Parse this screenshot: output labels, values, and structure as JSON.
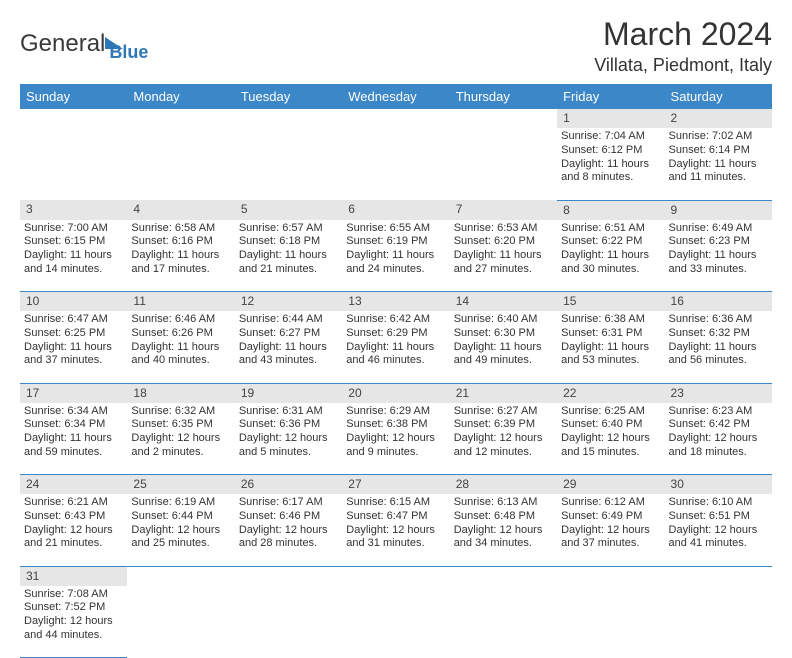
{
  "brand": {
    "name1": "General",
    "name2": "Blue"
  },
  "title": "March 2024",
  "location": "Villata, Piedmont, Italy",
  "colors": {
    "header_bg": "#3b87c8",
    "header_fg": "#ffffff",
    "daynum_bg": "#e6e6e6",
    "border": "#3b87c8"
  },
  "weekdays": [
    "Sunday",
    "Monday",
    "Tuesday",
    "Wednesday",
    "Thursday",
    "Friday",
    "Saturday"
  ],
  "weeks": [
    [
      null,
      null,
      null,
      null,
      null,
      {
        "n": "1",
        "sr": "Sunrise: 7:04 AM",
        "ss": "Sunset: 6:12 PM",
        "d1": "Daylight: 11 hours",
        "d2": "and 8 minutes."
      },
      {
        "n": "2",
        "sr": "Sunrise: 7:02 AM",
        "ss": "Sunset: 6:14 PM",
        "d1": "Daylight: 11 hours",
        "d2": "and 11 minutes."
      }
    ],
    [
      {
        "n": "3",
        "sr": "Sunrise: 7:00 AM",
        "ss": "Sunset: 6:15 PM",
        "d1": "Daylight: 11 hours",
        "d2": "and 14 minutes."
      },
      {
        "n": "4",
        "sr": "Sunrise: 6:58 AM",
        "ss": "Sunset: 6:16 PM",
        "d1": "Daylight: 11 hours",
        "d2": "and 17 minutes."
      },
      {
        "n": "5",
        "sr": "Sunrise: 6:57 AM",
        "ss": "Sunset: 6:18 PM",
        "d1": "Daylight: 11 hours",
        "d2": "and 21 minutes."
      },
      {
        "n": "6",
        "sr": "Sunrise: 6:55 AM",
        "ss": "Sunset: 6:19 PM",
        "d1": "Daylight: 11 hours",
        "d2": "and 24 minutes."
      },
      {
        "n": "7",
        "sr": "Sunrise: 6:53 AM",
        "ss": "Sunset: 6:20 PM",
        "d1": "Daylight: 11 hours",
        "d2": "and 27 minutes."
      },
      {
        "n": "8",
        "sr": "Sunrise: 6:51 AM",
        "ss": "Sunset: 6:22 PM",
        "d1": "Daylight: 11 hours",
        "d2": "and 30 minutes."
      },
      {
        "n": "9",
        "sr": "Sunrise: 6:49 AM",
        "ss": "Sunset: 6:23 PM",
        "d1": "Daylight: 11 hours",
        "d2": "and 33 minutes."
      }
    ],
    [
      {
        "n": "10",
        "sr": "Sunrise: 6:47 AM",
        "ss": "Sunset: 6:25 PM",
        "d1": "Daylight: 11 hours",
        "d2": "and 37 minutes."
      },
      {
        "n": "11",
        "sr": "Sunrise: 6:46 AM",
        "ss": "Sunset: 6:26 PM",
        "d1": "Daylight: 11 hours",
        "d2": "and 40 minutes."
      },
      {
        "n": "12",
        "sr": "Sunrise: 6:44 AM",
        "ss": "Sunset: 6:27 PM",
        "d1": "Daylight: 11 hours",
        "d2": "and 43 minutes."
      },
      {
        "n": "13",
        "sr": "Sunrise: 6:42 AM",
        "ss": "Sunset: 6:29 PM",
        "d1": "Daylight: 11 hours",
        "d2": "and 46 minutes."
      },
      {
        "n": "14",
        "sr": "Sunrise: 6:40 AM",
        "ss": "Sunset: 6:30 PM",
        "d1": "Daylight: 11 hours",
        "d2": "and 49 minutes."
      },
      {
        "n": "15",
        "sr": "Sunrise: 6:38 AM",
        "ss": "Sunset: 6:31 PM",
        "d1": "Daylight: 11 hours",
        "d2": "and 53 minutes."
      },
      {
        "n": "16",
        "sr": "Sunrise: 6:36 AM",
        "ss": "Sunset: 6:32 PM",
        "d1": "Daylight: 11 hours",
        "d2": "and 56 minutes."
      }
    ],
    [
      {
        "n": "17",
        "sr": "Sunrise: 6:34 AM",
        "ss": "Sunset: 6:34 PM",
        "d1": "Daylight: 11 hours",
        "d2": "and 59 minutes."
      },
      {
        "n": "18",
        "sr": "Sunrise: 6:32 AM",
        "ss": "Sunset: 6:35 PM",
        "d1": "Daylight: 12 hours",
        "d2": "and 2 minutes."
      },
      {
        "n": "19",
        "sr": "Sunrise: 6:31 AM",
        "ss": "Sunset: 6:36 PM",
        "d1": "Daylight: 12 hours",
        "d2": "and 5 minutes."
      },
      {
        "n": "20",
        "sr": "Sunrise: 6:29 AM",
        "ss": "Sunset: 6:38 PM",
        "d1": "Daylight: 12 hours",
        "d2": "and 9 minutes."
      },
      {
        "n": "21",
        "sr": "Sunrise: 6:27 AM",
        "ss": "Sunset: 6:39 PM",
        "d1": "Daylight: 12 hours",
        "d2": "and 12 minutes."
      },
      {
        "n": "22",
        "sr": "Sunrise: 6:25 AM",
        "ss": "Sunset: 6:40 PM",
        "d1": "Daylight: 12 hours",
        "d2": "and 15 minutes."
      },
      {
        "n": "23",
        "sr": "Sunrise: 6:23 AM",
        "ss": "Sunset: 6:42 PM",
        "d1": "Daylight: 12 hours",
        "d2": "and 18 minutes."
      }
    ],
    [
      {
        "n": "24",
        "sr": "Sunrise: 6:21 AM",
        "ss": "Sunset: 6:43 PM",
        "d1": "Daylight: 12 hours",
        "d2": "and 21 minutes."
      },
      {
        "n": "25",
        "sr": "Sunrise: 6:19 AM",
        "ss": "Sunset: 6:44 PM",
        "d1": "Daylight: 12 hours",
        "d2": "and 25 minutes."
      },
      {
        "n": "26",
        "sr": "Sunrise: 6:17 AM",
        "ss": "Sunset: 6:46 PM",
        "d1": "Daylight: 12 hours",
        "d2": "and 28 minutes."
      },
      {
        "n": "27",
        "sr": "Sunrise: 6:15 AM",
        "ss": "Sunset: 6:47 PM",
        "d1": "Daylight: 12 hours",
        "d2": "and 31 minutes."
      },
      {
        "n": "28",
        "sr": "Sunrise: 6:13 AM",
        "ss": "Sunset: 6:48 PM",
        "d1": "Daylight: 12 hours",
        "d2": "and 34 minutes."
      },
      {
        "n": "29",
        "sr": "Sunrise: 6:12 AM",
        "ss": "Sunset: 6:49 PM",
        "d1": "Daylight: 12 hours",
        "d2": "and 37 minutes."
      },
      {
        "n": "30",
        "sr": "Sunrise: 6:10 AM",
        "ss": "Sunset: 6:51 PM",
        "d1": "Daylight: 12 hours",
        "d2": "and 41 minutes."
      }
    ],
    [
      {
        "n": "31",
        "sr": "Sunrise: 7:08 AM",
        "ss": "Sunset: 7:52 PM",
        "d1": "Daylight: 12 hours",
        "d2": "and 44 minutes."
      },
      null,
      null,
      null,
      null,
      null,
      null
    ]
  ]
}
